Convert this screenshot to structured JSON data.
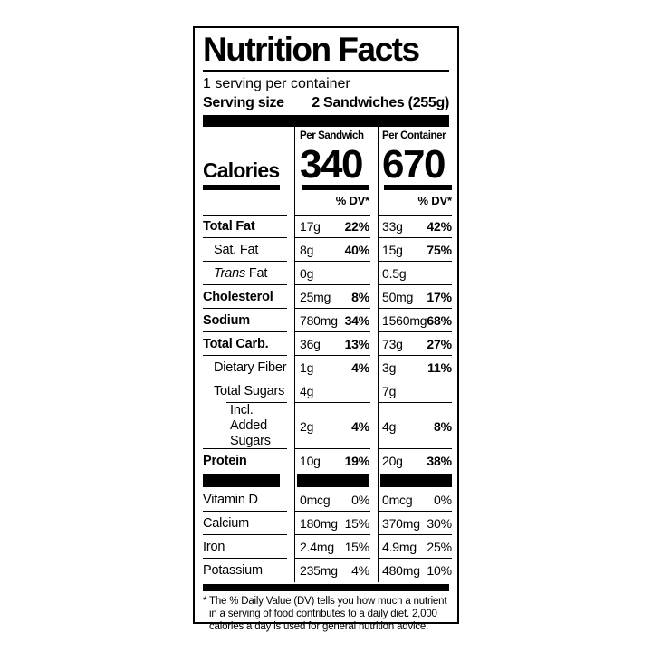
{
  "colors": {
    "ink": "#000000",
    "paper": "#ffffff"
  },
  "label": {
    "title": "Nutrition Facts",
    "servings_per_container": "1 serving per container",
    "serving_size": {
      "label": "Serving size",
      "value": "2 Sandwiches (255g)"
    },
    "calories": {
      "row_label": "Calories",
      "columns": [
        {
          "header": "Per Sandwich",
          "value": "340"
        },
        {
          "header": "Per Container",
          "value": "670"
        }
      ],
      "dv_header": "% DV*"
    },
    "nutrients": [
      {
        "name": "Total Fat",
        "per_sandwich": {
          "amount": "17g",
          "dv": "22%"
        },
        "per_container": {
          "amount": "33g",
          "dv": "42%"
        }
      },
      {
        "name": "Sat. Fat",
        "per_sandwich": {
          "amount": "8g",
          "dv": "40%"
        },
        "per_container": {
          "amount": "15g",
          "dv": "75%"
        }
      },
      {
        "name_italic": "Trans",
        "name": "Fat",
        "per_sandwich": {
          "amount": "0g",
          "dv": ""
        },
        "per_container": {
          "amount": "0.5g",
          "dv": ""
        }
      },
      {
        "name": "Cholesterol",
        "per_sandwich": {
          "amount": "25mg",
          "dv": "8%"
        },
        "per_container": {
          "amount": "50mg",
          "dv": "17%"
        }
      },
      {
        "name": "Sodium",
        "per_sandwich": {
          "amount": "780mg",
          "dv": "34%"
        },
        "per_container": {
          "amount": "1560mg",
          "dv": "68%"
        }
      },
      {
        "name": "Total Carb.",
        "per_sandwich": {
          "amount": "36g",
          "dv": "13%"
        },
        "per_container": {
          "amount": "73g",
          "dv": "27%"
        }
      },
      {
        "name": "Dietary Fiber",
        "per_sandwich": {
          "amount": "1g",
          "dv": "4%"
        },
        "per_container": {
          "amount": "3g",
          "dv": "11%"
        }
      },
      {
        "name": "Total Sugars",
        "per_sandwich": {
          "amount": "4g",
          "dv": ""
        },
        "per_container": {
          "amount": "7g",
          "dv": ""
        }
      },
      {
        "name": "Incl. Added Sugars",
        "name_line1": "Incl. Added",
        "name_line2": "Sugars",
        "per_sandwich": {
          "amount": "2g",
          "dv": "4%"
        },
        "per_container": {
          "amount": "4g",
          "dv": "8%"
        }
      },
      {
        "name": "Protein",
        "per_sandwich": {
          "amount": "10g",
          "dv": "19%"
        },
        "per_container": {
          "amount": "20g",
          "dv": "38%"
        }
      }
    ],
    "vitamins": [
      {
        "name": "Vitamin D",
        "per_sandwich": {
          "amount": "0mcg",
          "dv": "0%"
        },
        "per_container": {
          "amount": "0mcg",
          "dv": "0%"
        }
      },
      {
        "name": "Calcium",
        "per_sandwich": {
          "amount": "180mg",
          "dv": "15%"
        },
        "per_container": {
          "amount": "370mg",
          "dv": "30%"
        }
      },
      {
        "name": "Iron",
        "per_sandwich": {
          "amount": "2.4mg",
          "dv": "15%"
        },
        "per_container": {
          "amount": "4.9mg",
          "dv": "25%"
        }
      },
      {
        "name": "Potassium",
        "per_sandwich": {
          "amount": "235mg",
          "dv": "4%"
        },
        "per_container": {
          "amount": "480mg",
          "dv": "10%"
        }
      }
    ],
    "footnote": {
      "marker": "*",
      "text": "The % Daily Value (DV) tells you how much a nutrient in a serving of food contributes to a daily diet. 2,000 calories a day is used for general nutrition advice."
    }
  }
}
